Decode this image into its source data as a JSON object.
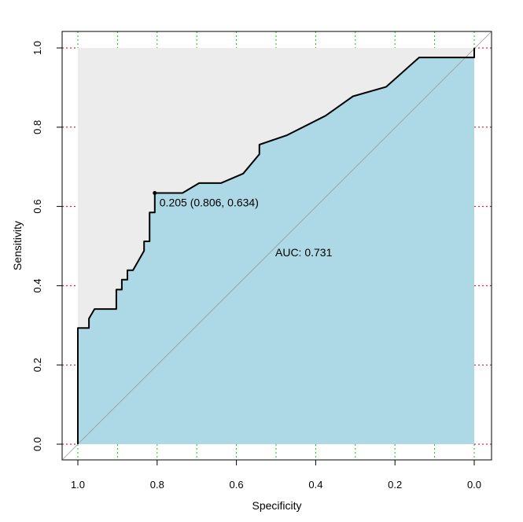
{
  "chart_data": {
    "type": "line",
    "title": "",
    "xlabel": "Specificity",
    "ylabel": "Sensitivity",
    "xlim": [
      1.0,
      0.0
    ],
    "ylim": [
      0.0,
      1.0
    ],
    "x_reversed": true,
    "x_ticks": [
      1.0,
      0.8,
      0.6,
      0.4,
      0.2,
      0.0
    ],
    "x_tick_labels": [
      "1.0",
      "0.8",
      "0.6",
      "0.4",
      "0.2",
      "0.0"
    ],
    "y_ticks": [
      0.0,
      0.2,
      0.4,
      0.6,
      0.8,
      1.0
    ],
    "y_tick_labels": [
      "0.0",
      "0.2",
      "0.4",
      "0.6",
      "0.8",
      "1.0"
    ],
    "grid": true,
    "grid_x": [
      1.0,
      0.9,
      0.8,
      0.7,
      0.6,
      0.5,
      0.4,
      0.3,
      0.2,
      0.1,
      0.0
    ],
    "grid_y": [
      0.0,
      0.2,
      0.4,
      0.6,
      0.8,
      1.0
    ],
    "colors": {
      "auc_fill": "#add8e6",
      "panel_fill": "#ececec",
      "curve": "#000000",
      "x_grid": "#00cc00",
      "y_grid": "#cc0000",
      "diagonal": "#999999"
    },
    "series": [
      {
        "x": [
          1.0,
          1.0,
          0.972,
          0.972,
          0.958,
          0.903,
          0.903,
          0.889,
          0.889,
          0.875,
          0.875,
          0.861,
          0.833,
          0.833,
          0.819,
          0.819,
          0.806,
          0.806,
          0.736,
          0.694,
          0.639,
          0.583,
          0.542,
          0.542,
          0.472,
          0.375,
          0.306,
          0.222,
          0.139,
          0.0,
          0.0
        ],
        "y": [
          0.0,
          0.293,
          0.293,
          0.317,
          0.341,
          0.341,
          0.39,
          0.39,
          0.415,
          0.415,
          0.439,
          0.439,
          0.488,
          0.512,
          0.512,
          0.585,
          0.585,
          0.634,
          0.634,
          0.659,
          0.659,
          0.683,
          0.732,
          0.756,
          0.78,
          0.829,
          0.878,
          0.902,
          0.976,
          0.976,
          1.0
        ]
      }
    ],
    "best_threshold": {
      "threshold": 0.205,
      "specificity": 0.806,
      "sensitivity": 0.634
    },
    "annotations": {
      "threshold_label": "0.205 (0.806, 0.634)",
      "auc_label": "AUC: 0.731",
      "auc_label_pos": {
        "x": 0.5,
        "y": 0.48
      }
    }
  }
}
